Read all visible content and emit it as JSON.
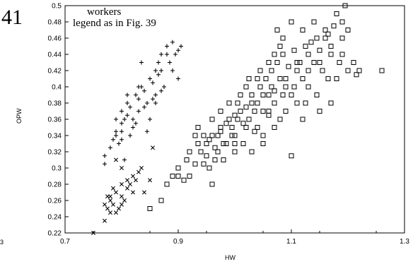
{
  "figure_number": "41",
  "annotations": [
    "workers",
    "legend as in Fig. 39"
  ],
  "left_edge_tick": "3",
  "chart_data": {
    "type": "scatter",
    "xlabel": "HW",
    "ylabel": "OPW",
    "xlim": [
      0.7,
      1.3
    ],
    "ylim": [
      0.22,
      0.5
    ],
    "x_ticks": [
      "0.7",
      "0.9",
      "1.1",
      "1.3"
    ],
    "y_ticks": [
      "0.22",
      "0.24",
      "0.26",
      "0.28",
      "0.3",
      "0.32",
      "0.34",
      "0.36",
      "0.38",
      "0.4",
      "0.42",
      "0.44",
      "0.46",
      "0.48",
      "0.5"
    ],
    "grid": false,
    "series": [
      {
        "marker": "plus",
        "points": [
          [
            0.77,
            0.315
          ],
          [
            0.77,
            0.305
          ],
          [
            0.78,
            0.325
          ],
          [
            0.785,
            0.335
          ],
          [
            0.79,
            0.34
          ],
          [
            0.79,
            0.345
          ],
          [
            0.795,
            0.33
          ],
          [
            0.8,
            0.345
          ],
          [
            0.8,
            0.355
          ],
          [
            0.805,
            0.36
          ],
          [
            0.81,
            0.365
          ],
          [
            0.815,
            0.375
          ],
          [
            0.8,
            0.37
          ],
          [
            0.81,
            0.38
          ],
          [
            0.82,
            0.35
          ],
          [
            0.82,
            0.36
          ],
          [
            0.825,
            0.39
          ],
          [
            0.83,
            0.385
          ],
          [
            0.83,
            0.37
          ],
          [
            0.835,
            0.4
          ],
          [
            0.84,
            0.395
          ],
          [
            0.84,
            0.375
          ],
          [
            0.845,
            0.38
          ],
          [
            0.85,
            0.41
          ],
          [
            0.85,
            0.36
          ],
          [
            0.855,
            0.405
          ],
          [
            0.86,
            0.42
          ],
          [
            0.86,
            0.38
          ],
          [
            0.865,
            0.43
          ],
          [
            0.87,
            0.44
          ],
          [
            0.87,
            0.395
          ],
          [
            0.875,
            0.4
          ],
          [
            0.88,
            0.45
          ],
          [
            0.88,
            0.44
          ],
          [
            0.885,
            0.43
          ],
          [
            0.89,
            0.455
          ],
          [
            0.895,
            0.44
          ],
          [
            0.9,
            0.445
          ],
          [
            0.905,
            0.45
          ],
          [
            0.89,
            0.42
          ],
          [
            0.9,
            0.41
          ],
          [
            0.81,
            0.39
          ],
          [
            0.86,
            0.39
          ],
          [
            0.83,
            0.4
          ],
          [
            0.825,
            0.355
          ],
          [
            0.845,
            0.345
          ],
          [
            0.8,
            0.335
          ],
          [
            0.815,
            0.34
          ],
          [
            0.79,
            0.36
          ],
          [
            0.805,
            0.31
          ],
          [
            0.835,
            0.43
          ],
          [
            0.855,
            0.385
          ],
          [
            0.87,
            0.42
          ],
          [
            0.865,
            0.415
          ]
        ]
      },
      {
        "marker": "cross",
        "points": [
          [
            0.75,
            0.22
          ],
          [
            0.77,
            0.235
          ],
          [
            0.775,
            0.25
          ],
          [
            0.78,
            0.26
          ],
          [
            0.78,
            0.265
          ],
          [
            0.785,
            0.255
          ],
          [
            0.79,
            0.27
          ],
          [
            0.79,
            0.245
          ],
          [
            0.795,
            0.25
          ],
          [
            0.8,
            0.265
          ],
          [
            0.8,
            0.255
          ],
          [
            0.805,
            0.26
          ],
          [
            0.81,
            0.275
          ],
          [
            0.81,
            0.285
          ],
          [
            0.815,
            0.28
          ],
          [
            0.82,
            0.29
          ],
          [
            0.825,
            0.285
          ],
          [
            0.83,
            0.295
          ],
          [
            0.835,
            0.3
          ],
          [
            0.84,
            0.27
          ],
          [
            0.85,
            0.285
          ],
          [
            0.855,
            0.325
          ],
          [
            0.79,
            0.31
          ],
          [
            0.8,
            0.3
          ],
          [
            0.775,
            0.265
          ],
          [
            0.785,
            0.275
          ],
          [
            0.8,
            0.28
          ],
          [
            0.82,
            0.27
          ],
          [
            0.77,
            0.255
          ],
          [
            0.78,
            0.245
          ]
        ]
      },
      {
        "marker": "square",
        "points": [
          [
            0.85,
            0.25
          ],
          [
            0.9,
            0.29
          ],
          [
            0.91,
            0.285
          ],
          [
            0.915,
            0.31
          ],
          [
            0.92,
            0.29
          ],
          [
            0.93,
            0.305
          ],
          [
            0.935,
            0.33
          ],
          [
            0.94,
            0.32
          ],
          [
            0.945,
            0.305
          ],
          [
            0.95,
            0.315
          ],
          [
            0.955,
            0.335
          ],
          [
            0.96,
            0.28
          ],
          [
            0.965,
            0.31
          ],
          [
            0.97,
            0.34
          ],
          [
            0.975,
            0.345
          ],
          [
            0.98,
            0.33
          ],
          [
            0.985,
            0.355
          ],
          [
            0.99,
            0.36
          ],
          [
            0.995,
            0.35
          ],
          [
            1.0,
            0.365
          ],
          [
            1.0,
            0.34
          ],
          [
            1.005,
            0.38
          ],
          [
            1.01,
            0.37
          ],
          [
            1.015,
            0.355
          ],
          [
            1.02,
            0.375
          ],
          [
            1.025,
            0.36
          ],
          [
            1.03,
            0.39
          ],
          [
            1.035,
            0.345
          ],
          [
            1.04,
            0.38
          ],
          [
            1.045,
            0.4
          ],
          [
            1.05,
            0.37
          ],
          [
            1.055,
            0.41
          ],
          [
            1.06,
            0.39
          ],
          [
            1.065,
            0.42
          ],
          [
            1.07,
            0.395
          ],
          [
            1.075,
            0.43
          ],
          [
            1.08,
            0.41
          ],
          [
            1.085,
            0.44
          ],
          [
            1.09,
            0.4
          ],
          [
            1.095,
            0.425
          ],
          [
            1.1,
            0.39
          ],
          [
            1.105,
            0.445
          ],
          [
            1.11,
            0.42
          ],
          [
            1.115,
            0.43
          ],
          [
            1.12,
            0.41
          ],
          [
            1.125,
            0.45
          ],
          [
            1.13,
            0.44
          ],
          [
            1.135,
            0.455
          ],
          [
            1.14,
            0.43
          ],
          [
            1.145,
            0.46
          ],
          [
            1.15,
            0.445
          ],
          [
            1.155,
            0.42
          ],
          [
            1.16,
            0.47
          ],
          [
            1.165,
            0.465
          ],
          [
            1.17,
            0.44
          ],
          [
            1.175,
            0.475
          ],
          [
            1.18,
            0.49
          ],
          [
            1.19,
            0.48
          ],
          [
            1.195,
            0.5
          ],
          [
            1.2,
            0.47
          ],
          [
            1.21,
            0.43
          ],
          [
            1.22,
            0.42
          ],
          [
            1.26,
            0.42
          ],
          [
            1.215,
            0.415
          ],
          [
            1.18,
            0.41
          ],
          [
            1.17,
            0.38
          ],
          [
            1.15,
            0.37
          ],
          [
            1.12,
            0.36
          ],
          [
            1.1,
            0.315
          ],
          [
            1.08,
            0.36
          ],
          [
            1.06,
            0.365
          ],
          [
            1.05,
            0.33
          ],
          [
            1.03,
            0.32
          ],
          [
            1.02,
            0.35
          ],
          [
            1.0,
            0.32
          ],
          [
            0.98,
            0.31
          ],
          [
            0.97,
            0.32
          ],
          [
            0.95,
            0.33
          ],
          [
            0.93,
            0.34
          ],
          [
            0.92,
            0.32
          ],
          [
            0.9,
            0.3
          ],
          [
            0.89,
            0.29
          ],
          [
            0.88,
            0.28
          ],
          [
            0.87,
            0.26
          ],
          [
            0.96,
            0.36
          ],
          [
            0.975,
            0.37
          ],
          [
            0.99,
            0.38
          ],
          [
            1.01,
            0.39
          ],
          [
            1.02,
            0.4
          ],
          [
            1.04,
            0.41
          ],
          [
            1.06,
            0.43
          ],
          [
            1.07,
            0.44
          ],
          [
            1.08,
            0.45
          ],
          [
            1.085,
            0.46
          ],
          [
            1.075,
            0.47
          ],
          [
            1.1,
            0.48
          ],
          [
            1.12,
            0.47
          ],
          [
            1.14,
            0.48
          ],
          [
            1.16,
            0.46
          ],
          [
            1.19,
            0.44
          ],
          [
            1.2,
            0.42
          ],
          [
            1.13,
            0.4
          ],
          [
            1.11,
            0.38
          ],
          [
            1.09,
            0.37
          ],
          [
            1.07,
            0.35
          ],
          [
            1.05,
            0.34
          ],
          [
            1.035,
            0.37
          ],
          [
            1.015,
            0.33
          ],
          [
            0.995,
            0.34
          ],
          [
            0.985,
            0.33
          ],
          [
            0.965,
            0.325
          ],
          [
            0.955,
            0.3
          ],
          [
            0.945,
            0.34
          ],
          [
            0.935,
            0.35
          ],
          [
            1.025,
            0.41
          ],
          [
            1.045,
            0.42
          ],
          [
            1.065,
            0.4
          ],
          [
            1.085,
            0.39
          ],
          [
            1.105,
            0.4
          ],
          [
            1.125,
            0.38
          ],
          [
            1.145,
            0.39
          ],
          [
            1.165,
            0.41
          ],
          [
            1.185,
            0.43
          ],
          [
            1.005,
            0.36
          ],
          [
            0.975,
            0.35
          ],
          [
            0.96,
            0.34
          ],
          [
            1.0,
            0.33
          ],
          [
            1.04,
            0.35
          ],
          [
            1.06,
            0.37
          ],
          [
            1.09,
            0.41
          ],
          [
            1.11,
            0.43
          ],
          [
            1.13,
            0.42
          ],
          [
            1.15,
            0.43
          ],
          [
            1.17,
            0.45
          ],
          [
            1.19,
            0.46
          ],
          [
            1.03,
            0.38
          ],
          [
            1.05,
            0.39
          ],
          [
            1.07,
            0.38
          ]
        ]
      }
    ]
  }
}
